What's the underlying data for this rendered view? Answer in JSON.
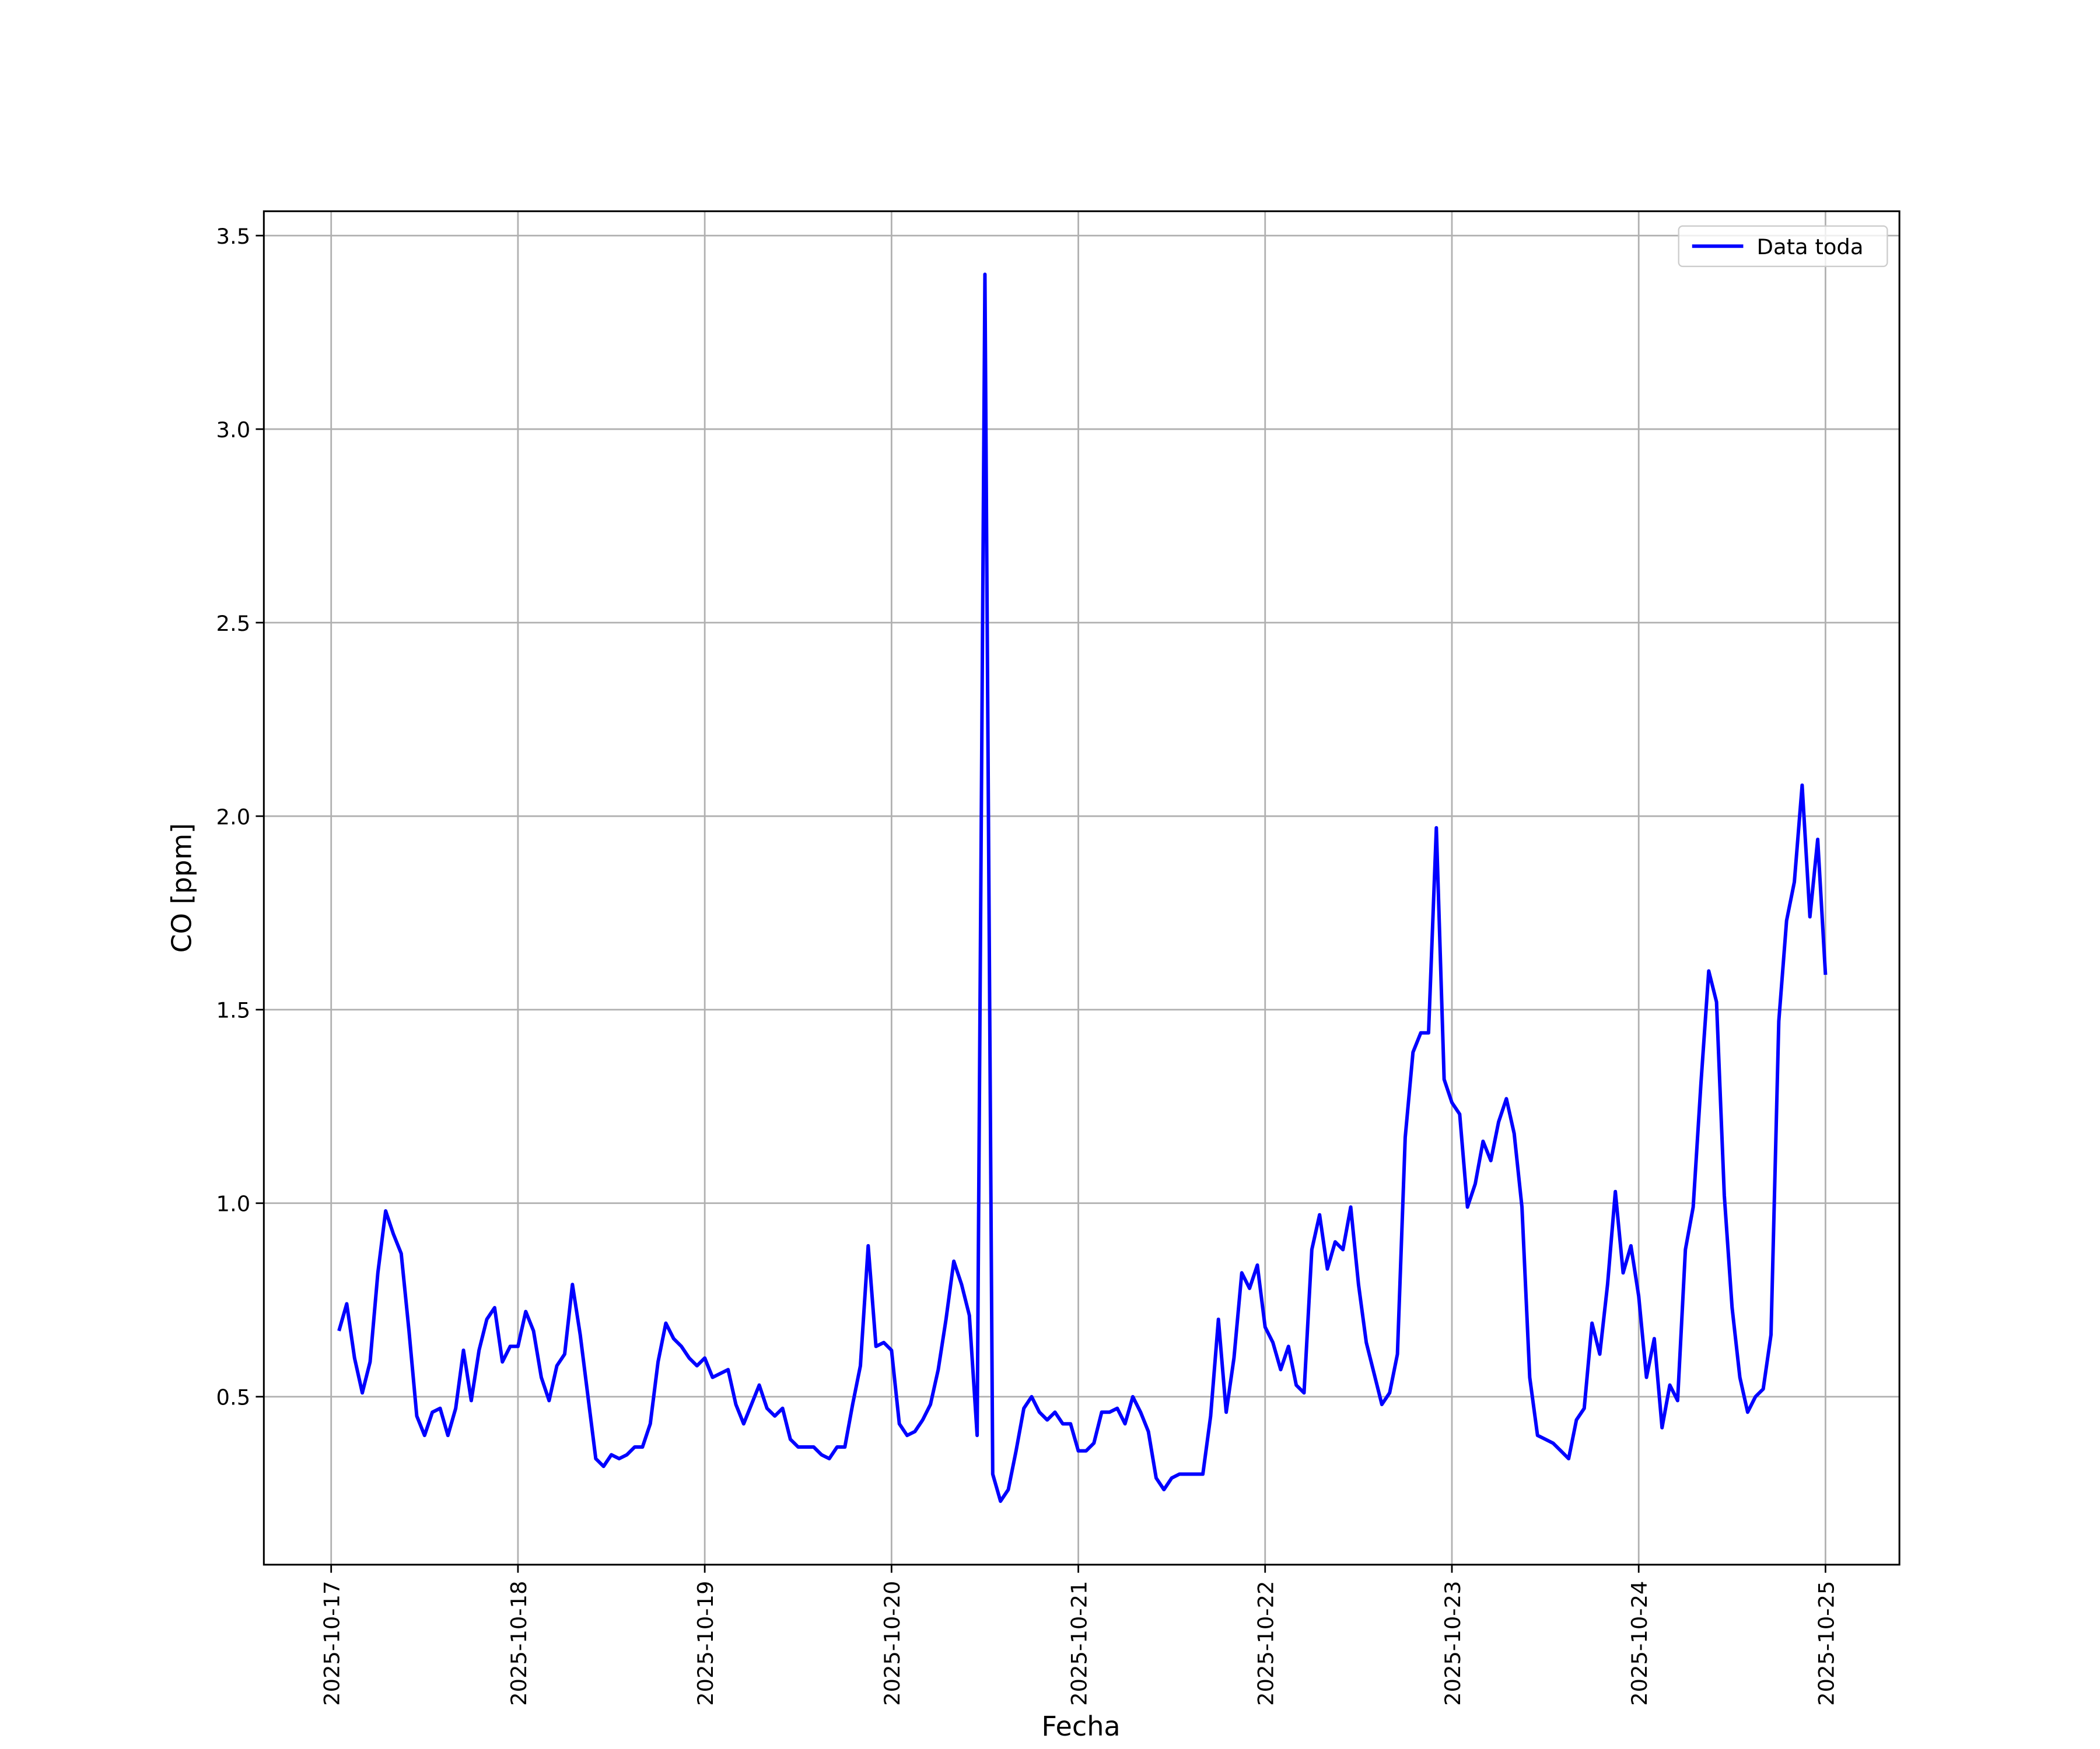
{
  "chart_data": {
    "type": "line",
    "xlabel": "Fecha",
    "ylabel": "CO [ppm]",
    "x": [
      "2025-10-17 01:00",
      "2025-10-17 02:00",
      "2025-10-17 03:00",
      "2025-10-17 04:00",
      "2025-10-17 05:00",
      "2025-10-17 06:00",
      "2025-10-17 07:00",
      "2025-10-17 08:00",
      "2025-10-17 09:00",
      "2025-10-17 10:00",
      "2025-10-17 11:00",
      "2025-10-17 12:00",
      "2025-10-17 13:00",
      "2025-10-17 14:00",
      "2025-10-17 15:00",
      "2025-10-17 16:00",
      "2025-10-17 17:00",
      "2025-10-17 18:00",
      "2025-10-17 19:00",
      "2025-10-17 20:00",
      "2025-10-17 21:00",
      "2025-10-17 22:00",
      "2025-10-17 23:00",
      "2025-10-18 00:00",
      "2025-10-18 01:00",
      "2025-10-18 02:00",
      "2025-10-18 03:00",
      "2025-10-18 04:00",
      "2025-10-18 05:00",
      "2025-10-18 06:00",
      "2025-10-18 07:00",
      "2025-10-18 08:00",
      "2025-10-18 09:00",
      "2025-10-18 10:00",
      "2025-10-18 11:00",
      "2025-10-18 12:00",
      "2025-10-18 13:00",
      "2025-10-18 14:00",
      "2025-10-18 15:00",
      "2025-10-18 16:00",
      "2025-10-18 17:00",
      "2025-10-18 18:00",
      "2025-10-18 19:00",
      "2025-10-18 20:00",
      "2025-10-18 21:00",
      "2025-10-18 22:00",
      "2025-10-18 23:00",
      "2025-10-19 00:00",
      "2025-10-19 01:00",
      "2025-10-19 02:00",
      "2025-10-19 03:00",
      "2025-10-19 04:00",
      "2025-10-19 05:00",
      "2025-10-19 06:00",
      "2025-10-19 07:00",
      "2025-10-19 08:00",
      "2025-10-19 09:00",
      "2025-10-19 10:00",
      "2025-10-19 11:00",
      "2025-10-19 12:00",
      "2025-10-19 13:00",
      "2025-10-19 14:00",
      "2025-10-19 15:00",
      "2025-10-19 16:00",
      "2025-10-19 17:00",
      "2025-10-19 18:00",
      "2025-10-19 19:00",
      "2025-10-19 20:00",
      "2025-10-19 21:00",
      "2025-10-19 22:00",
      "2025-10-19 23:00",
      "2025-10-20 00:00",
      "2025-10-20 01:00",
      "2025-10-20 02:00",
      "2025-10-20 03:00",
      "2025-10-20 04:00",
      "2025-10-20 05:00",
      "2025-10-20 06:00",
      "2025-10-20 07:00",
      "2025-10-20 08:00",
      "2025-10-20 09:00",
      "2025-10-20 10:00",
      "2025-10-20 11:00",
      "2025-10-20 12:00",
      "2025-10-20 13:00",
      "2025-10-20 14:00",
      "2025-10-20 15:00",
      "2025-10-20 16:00",
      "2025-10-20 17:00",
      "2025-10-20 18:00",
      "2025-10-20 19:00",
      "2025-10-20 20:00",
      "2025-10-20 21:00",
      "2025-10-20 22:00",
      "2025-10-20 23:00",
      "2025-10-21 00:00",
      "2025-10-21 01:00",
      "2025-10-21 02:00",
      "2025-10-21 03:00",
      "2025-10-21 04:00",
      "2025-10-21 05:00",
      "2025-10-21 06:00",
      "2025-10-21 07:00",
      "2025-10-21 08:00",
      "2025-10-21 09:00",
      "2025-10-21 10:00",
      "2025-10-21 11:00",
      "2025-10-21 12:00",
      "2025-10-21 13:00",
      "2025-10-21 14:00",
      "2025-10-21 15:00",
      "2025-10-21 16:00",
      "2025-10-21 17:00",
      "2025-10-21 18:00",
      "2025-10-21 19:00",
      "2025-10-21 20:00",
      "2025-10-21 21:00",
      "2025-10-21 22:00",
      "2025-10-21 23:00",
      "2025-10-22 00:00",
      "2025-10-22 01:00",
      "2025-10-22 02:00",
      "2025-10-22 03:00",
      "2025-10-22 04:00",
      "2025-10-22 05:00",
      "2025-10-22 06:00",
      "2025-10-22 07:00",
      "2025-10-22 08:00",
      "2025-10-22 09:00",
      "2025-10-22 10:00",
      "2025-10-22 11:00",
      "2025-10-22 12:00",
      "2025-10-22 13:00",
      "2025-10-22 14:00",
      "2025-10-22 15:00",
      "2025-10-22 16:00",
      "2025-10-22 17:00",
      "2025-10-22 18:00",
      "2025-10-22 19:00",
      "2025-10-22 20:00",
      "2025-10-22 21:00",
      "2025-10-22 22:00",
      "2025-10-22 23:00",
      "2025-10-23 00:00",
      "2025-10-23 01:00",
      "2025-10-23 02:00",
      "2025-10-23 03:00",
      "2025-10-23 04:00",
      "2025-10-23 05:00",
      "2025-10-23 06:00",
      "2025-10-23 07:00",
      "2025-10-23 08:00",
      "2025-10-23 09:00",
      "2025-10-23 10:00",
      "2025-10-23 11:00",
      "2025-10-23 12:00",
      "2025-10-23 13:00",
      "2025-10-23 14:00",
      "2025-10-23 15:00",
      "2025-10-23 16:00",
      "2025-10-23 17:00",
      "2025-10-23 18:00",
      "2025-10-23 19:00",
      "2025-10-23 20:00",
      "2025-10-23 21:00",
      "2025-10-23 22:00",
      "2025-10-23 23:00",
      "2025-10-24 00:00",
      "2025-10-24 01:00",
      "2025-10-24 02:00",
      "2025-10-24 03:00",
      "2025-10-24 04:00",
      "2025-10-24 05:00",
      "2025-10-24 06:00",
      "2025-10-24 07:00",
      "2025-10-24 08:00",
      "2025-10-24 09:00",
      "2025-10-24 10:00",
      "2025-10-24 11:00",
      "2025-10-24 12:00",
      "2025-10-24 13:00",
      "2025-10-24 14:00",
      "2025-10-24 15:00",
      "2025-10-24 16:00",
      "2025-10-24 17:00",
      "2025-10-24 18:00",
      "2025-10-24 19:00",
      "2025-10-24 20:00",
      "2025-10-24 21:00",
      "2025-10-24 22:00",
      "2025-10-24 23:00",
      "2025-10-25 00:00"
    ],
    "series": [
      {
        "name": "Data toda",
        "color": "#0000ff",
        "values": [
          0.67,
          0.74,
          0.6,
          0.51,
          0.59,
          0.82,
          0.98,
          0.92,
          0.87,
          0.67,
          0.45,
          0.4,
          0.46,
          0.47,
          0.4,
          0.47,
          0.62,
          0.49,
          0.62,
          0.7,
          0.73,
          0.59,
          0.63,
          0.63,
          0.72,
          0.67,
          0.55,
          0.49,
          0.58,
          0.61,
          0.79,
          0.66,
          0.5,
          0.34,
          0.32,
          0.35,
          0.34,
          0.35,
          0.37,
          0.37,
          0.43,
          0.59,
          0.69,
          0.65,
          0.63,
          0.6,
          0.58,
          0.6,
          0.55,
          0.56,
          0.57,
          0.48,
          0.43,
          0.48,
          0.53,
          0.47,
          0.45,
          0.47,
          0.39,
          0.37,
          0.37,
          0.37,
          0.35,
          0.34,
          0.37,
          0.37,
          0.48,
          0.58,
          0.89,
          0.63,
          0.64,
          0.62,
          0.43,
          0.4,
          0.41,
          0.44,
          0.48,
          0.57,
          0.7,
          0.85,
          0.79,
          0.71,
          0.4,
          3.4,
          0.3,
          0.23,
          0.26,
          0.36,
          0.47,
          0.5,
          0.46,
          0.44,
          0.46,
          0.43,
          0.43,
          0.36,
          0.36,
          0.38,
          0.46,
          0.46,
          0.47,
          0.43,
          0.5,
          0.46,
          0.41,
          0.29,
          0.26,
          0.29,
          0.3,
          0.3,
          0.3,
          0.3,
          0.45,
          0.7,
          0.46,
          0.6,
          0.82,
          0.78,
          0.84,
          0.68,
          0.64,
          0.57,
          0.63,
          0.53,
          0.51,
          0.88,
          0.97,
          0.83,
          0.9,
          0.88,
          0.99,
          0.79,
          0.64,
          0.56,
          0.48,
          0.51,
          0.61,
          1.17,
          1.39,
          1.44,
          1.44,
          1.97,
          1.32,
          1.26,
          1.23,
          0.99,
          1.05,
          1.16,
          1.11,
          1.21,
          1.27,
          1.18,
          0.99,
          0.55,
          0.4,
          0.39,
          0.38,
          0.36,
          0.34,
          0.44,
          0.47,
          0.69,
          0.61,
          0.79,
          1.03,
          0.82,
          0.89,
          0.76,
          0.55,
          0.65,
          0.42,
          0.53,
          0.49,
          0.88,
          0.99,
          1.31,
          1.6,
          1.52,
          1.02,
          0.73,
          0.55,
          0.46,
          0.5,
          0.52,
          0.66,
          1.47,
          1.73,
          1.83,
          2.08,
          1.74,
          1.94,
          1.59
        ]
      }
    ],
    "xlim": [
      "2025-10-16 15:21",
      "2025-10-25 09:30"
    ],
    "xticks": [
      "2025-10-17",
      "2025-10-18",
      "2025-10-19",
      "2025-10-20",
      "2025-10-21",
      "2025-10-22",
      "2025-10-23",
      "2025-10-24",
      "2025-10-25"
    ],
    "ylim": [
      0.066,
      3.563
    ],
    "yticks": [
      {
        "value": 0.5,
        "label": "0.5"
      },
      {
        "value": 1,
        "label": "1.0"
      },
      {
        "value": 1.5,
        "label": "1.5"
      },
      {
        "value": 2,
        "label": "2.0"
      },
      {
        "value": 2.5,
        "label": "2.5"
      },
      {
        "value": 3,
        "label": "3.0"
      },
      {
        "value": 3.5,
        "label": "3.5"
      }
    ],
    "grid": true,
    "legend": "upper right"
  }
}
